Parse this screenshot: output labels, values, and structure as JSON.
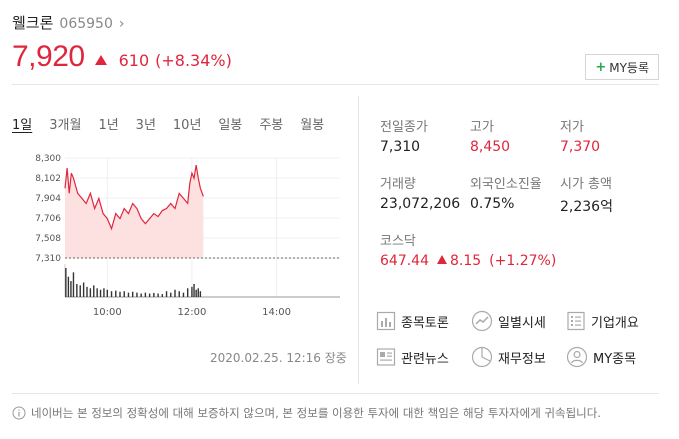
{
  "stock": {
    "name": "웰크론",
    "code": "065950",
    "price": "7,920",
    "change": "610",
    "change_pct": "(+8.34%)"
  },
  "my_button": {
    "plus": "+",
    "label": "MY등록"
  },
  "tabs": [
    "1일",
    "3개월",
    "1년",
    "3년",
    "10년",
    "일봉",
    "주봉",
    "월봉"
  ],
  "info": {
    "prev_close": {
      "label": "전일종가",
      "value": "7,310"
    },
    "high": {
      "label": "고가",
      "value": "8,450"
    },
    "low": {
      "label": "저가",
      "value": "7,370"
    },
    "volume": {
      "label": "거래량",
      "value": "23,072,206"
    },
    "foreign": {
      "label": "외국인소진율",
      "value": "0.75%"
    },
    "market_cap": {
      "label": "시가 총액",
      "value": "2,236억"
    }
  },
  "index": {
    "label": "코스닥",
    "value": "647.44",
    "change": "8.15",
    "change_pct": "(+1.27%)"
  },
  "links": [
    {
      "label": "종목토론",
      "icon": "chart-board-icon"
    },
    {
      "label": "일별시세",
      "icon": "trend-icon"
    },
    {
      "label": "기업개요",
      "icon": "document-list-icon"
    },
    {
      "label": "관련뉴스",
      "icon": "news-icon"
    },
    {
      "label": "재무정보",
      "icon": "pie-icon"
    },
    {
      "label": "MY종목",
      "icon": "person-icon"
    }
  ],
  "timestamp": "2020.02.25. 12:16 장중",
  "notice": "네이버는 본 정보의 정확성에 대해 보증하지 않으며, 본 정보를 이용한 투자에 대한 책임은 해당 투자자에게 귀속됩니다.",
  "colors": {
    "up": "#e0263c",
    "area": "#fde1e1",
    "volume": "#333333"
  },
  "chart_data": {
    "type": "area",
    "y_ticks": [
      "8,300",
      "8,102",
      "7,904",
      "7,706",
      "7,508",
      "7,310"
    ],
    "x_ticks": [
      "10:00",
      "12:00",
      "14:00"
    ],
    "ylim": [
      7310,
      8300
    ],
    "reference": 7310,
    "x_range_hours": [
      9.0,
      15.5
    ],
    "price_series": {
      "t": [
        9.0,
        9.05,
        9.1,
        9.15,
        9.2,
        9.3,
        9.4,
        9.5,
        9.6,
        9.7,
        9.8,
        9.9,
        10.0,
        10.1,
        10.2,
        10.3,
        10.4,
        10.5,
        10.6,
        10.7,
        10.8,
        10.9,
        11.0,
        11.1,
        11.2,
        11.3,
        11.4,
        11.5,
        11.6,
        11.7,
        11.8,
        11.9,
        11.95,
        12.0,
        12.05,
        12.1,
        12.15,
        12.2,
        12.27
      ],
      "v": [
        8000,
        8200,
        7950,
        8150,
        8100,
        7950,
        7900,
        7850,
        7950,
        7800,
        7900,
        7750,
        7700,
        7600,
        7750,
        7700,
        7800,
        7750,
        7850,
        7800,
        7700,
        7650,
        7700,
        7750,
        7720,
        7780,
        7800,
        7850,
        7800,
        7950,
        7900,
        7850,
        8050,
        8150,
        8100,
        8230,
        8100,
        8000,
        7920
      ]
    },
    "volume_series": {
      "t": [
        9.02,
        9.08,
        9.14,
        9.2,
        9.28,
        9.36,
        9.44,
        9.52,
        9.6,
        9.68,
        9.76,
        9.84,
        9.92,
        10.0,
        10.1,
        10.2,
        10.3,
        10.4,
        10.5,
        10.6,
        10.7,
        10.8,
        10.9,
        11.0,
        11.1,
        11.2,
        11.3,
        11.4,
        11.5,
        11.6,
        11.7,
        11.8,
        11.9,
        12.0,
        12.05,
        12.1,
        12.15,
        12.2
      ],
      "v": [
        1.0,
        0.7,
        0.55,
        0.85,
        0.45,
        0.4,
        0.5,
        0.35,
        0.3,
        0.4,
        0.3,
        0.25,
        0.3,
        0.25,
        0.2,
        0.22,
        0.18,
        0.2,
        0.15,
        0.18,
        0.15,
        0.12,
        0.15,
        0.12,
        0.14,
        0.12,
        0.1,
        0.2,
        0.15,
        0.25,
        0.2,
        0.15,
        0.3,
        0.35,
        0.45,
        0.25,
        0.3,
        0.2
      ]
    }
  }
}
